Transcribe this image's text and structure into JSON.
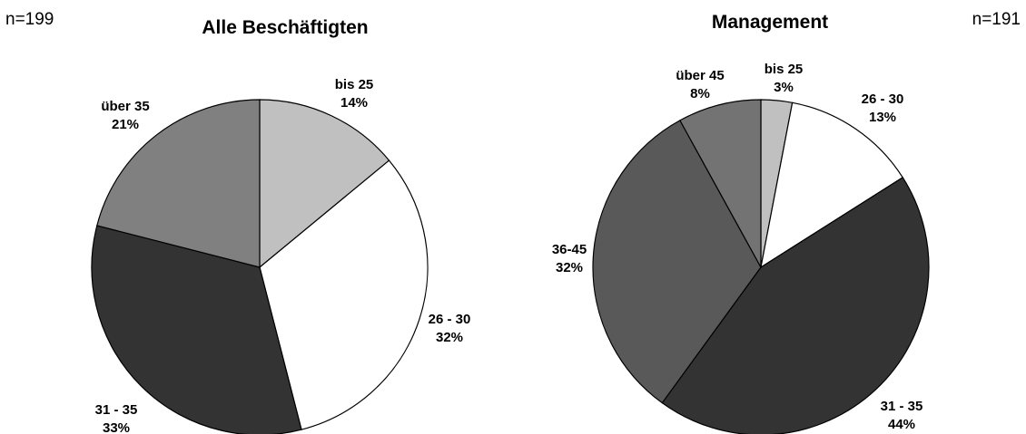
{
  "chart_data": [
    {
      "type": "pie",
      "title": "Alle Beschäftigten",
      "n": "n=199",
      "colors": [
        "#c0c0c0",
        "#ffffff",
        "#333333",
        "#808080"
      ],
      "slices": [
        {
          "label": "bis 25",
          "value": 14,
          "value_label": "14%"
        },
        {
          "label": "26 - 30",
          "value": 32,
          "value_label": "32%"
        },
        {
          "label": "31 - 35",
          "value": 33,
          "value_label": "33%"
        },
        {
          "label": "über 35",
          "value": 21,
          "value_label": "21%"
        }
      ]
    },
    {
      "type": "pie",
      "title": "Management",
      "n": "n=191",
      "colors": [
        "#c0c0c0",
        "#ffffff",
        "#333333",
        "#595959",
        "#737373"
      ],
      "slices": [
        {
          "label": "bis 25",
          "value": 3,
          "value_label": "3%"
        },
        {
          "label": "26 - 30",
          "value": 13,
          "value_label": "13%"
        },
        {
          "label": "31 - 35",
          "value": 44,
          "value_label": "44%"
        },
        {
          "label": "36-45",
          "value": 32,
          "value_label": "32%"
        },
        {
          "label": "über 45",
          "value": 8,
          "value_label": "8%"
        }
      ]
    }
  ]
}
